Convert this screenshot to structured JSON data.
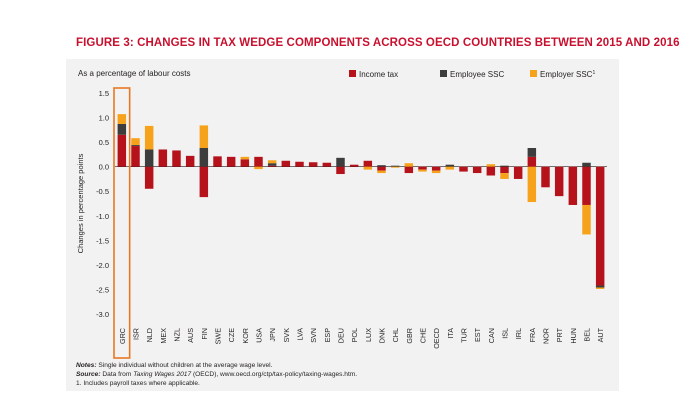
{
  "figure": {
    "label": "FIGURE 3:",
    "title": "CHANGES IN TAX WEDGE COMPONENTS ACROSS OECD COUNTRIES BETWEEN 2015 AND 2016"
  },
  "notes": {
    "notes_label": "Notes:",
    "notes_text": " Single individual without children at the average wage level.",
    "source_label": "Source:",
    "source_pre": " Data from ",
    "source_title": "Taxing Wages 2017",
    "source_post": " (OECD), www.oecd.org/ctp/tax-policy/taxing-wages.htm.",
    "footnote": "1. Includes payroll taxes where applicable."
  },
  "colors": {
    "income_tax": "#b5121b",
    "employee_ssc": "#3d3d3d",
    "employer_ssc": "#f6a21b",
    "highlight": "#e87722",
    "panel": "#f2f2f2"
  },
  "chart_data": {
    "type": "bar",
    "stacked": true,
    "subtitle": "As a percentage of labour costs",
    "ylabel": "Changes in percentage points",
    "xlabel": "",
    "ylim": [
      -3.0,
      1.5
    ],
    "yticks": [
      "1.5",
      "1.0",
      "0.5",
      "0.0",
      "-0.5",
      "-1.0",
      "-1.5",
      "-2.0",
      "-2.5",
      "-3.0"
    ],
    "legend_position": "top-right",
    "highlighted_category": "GRC",
    "categories": [
      "GRC",
      "ISR",
      "NLD",
      "MEX",
      "NZL",
      "AUS",
      "FIN",
      "SWE",
      "CZE",
      "KOR",
      "USA",
      "JPN",
      "SVK",
      "LVA",
      "SVN",
      "ESP",
      "DEU",
      "POL",
      "LUX",
      "DNK",
      "CHL",
      "GBR",
      "CHE",
      "OECD",
      "ITA",
      "TUR",
      "EST",
      "CAN",
      "ISL",
      "IRL",
      "FRA",
      "NOR",
      "PRT",
      "HUN",
      "BEL",
      "AUT"
    ],
    "series": [
      {
        "name": "Income tax",
        "color": "#b5121b",
        "values": [
          0.65,
          0.42,
          -0.45,
          0.35,
          0.33,
          0.22,
          -0.62,
          0.21,
          0.2,
          0.15,
          0.2,
          0.02,
          0.12,
          0.1,
          0.09,
          0.08,
          -0.15,
          0.04,
          0.12,
          -0.08,
          0.0,
          -0.13,
          -0.06,
          -0.08,
          0.0,
          -0.1,
          -0.13,
          -0.18,
          -0.13,
          -0.25,
          0.2,
          -0.42,
          -0.6,
          -0.78,
          -0.78,
          -2.42
        ]
      },
      {
        "name": "Employee SSC",
        "color": "#3d3d3d",
        "values": [
          0.22,
          0.02,
          0.35,
          0.0,
          0.0,
          0.0,
          0.38,
          0.0,
          0.0,
          0.0,
          0.0,
          0.05,
          0.0,
          0.0,
          0.0,
          0.0,
          0.18,
          0.0,
          0.0,
          0.03,
          0.02,
          0.0,
          0.0,
          0.0,
          0.04,
          0.0,
          0.0,
          0.0,
          0.02,
          0.0,
          0.18,
          0.0,
          0.0,
          0.0,
          0.08,
          -0.04
        ]
      },
      {
        "name": "Employer SSC",
        "color": "#f6a21b",
        "legend_suffix": "1",
        "values": [
          0.2,
          0.14,
          0.48,
          0.0,
          0.0,
          0.0,
          0.46,
          0.0,
          0.0,
          0.05,
          -0.05,
          0.06,
          0.0,
          0.0,
          0.0,
          0.0,
          0.0,
          0.0,
          -0.06,
          -0.05,
          -0.02,
          0.07,
          -0.04,
          -0.05,
          -0.06,
          0.0,
          0.0,
          0.05,
          -0.12,
          0.0,
          -0.72,
          0.0,
          0.0,
          0.0,
          -0.6,
          -0.03
        ]
      }
    ]
  }
}
